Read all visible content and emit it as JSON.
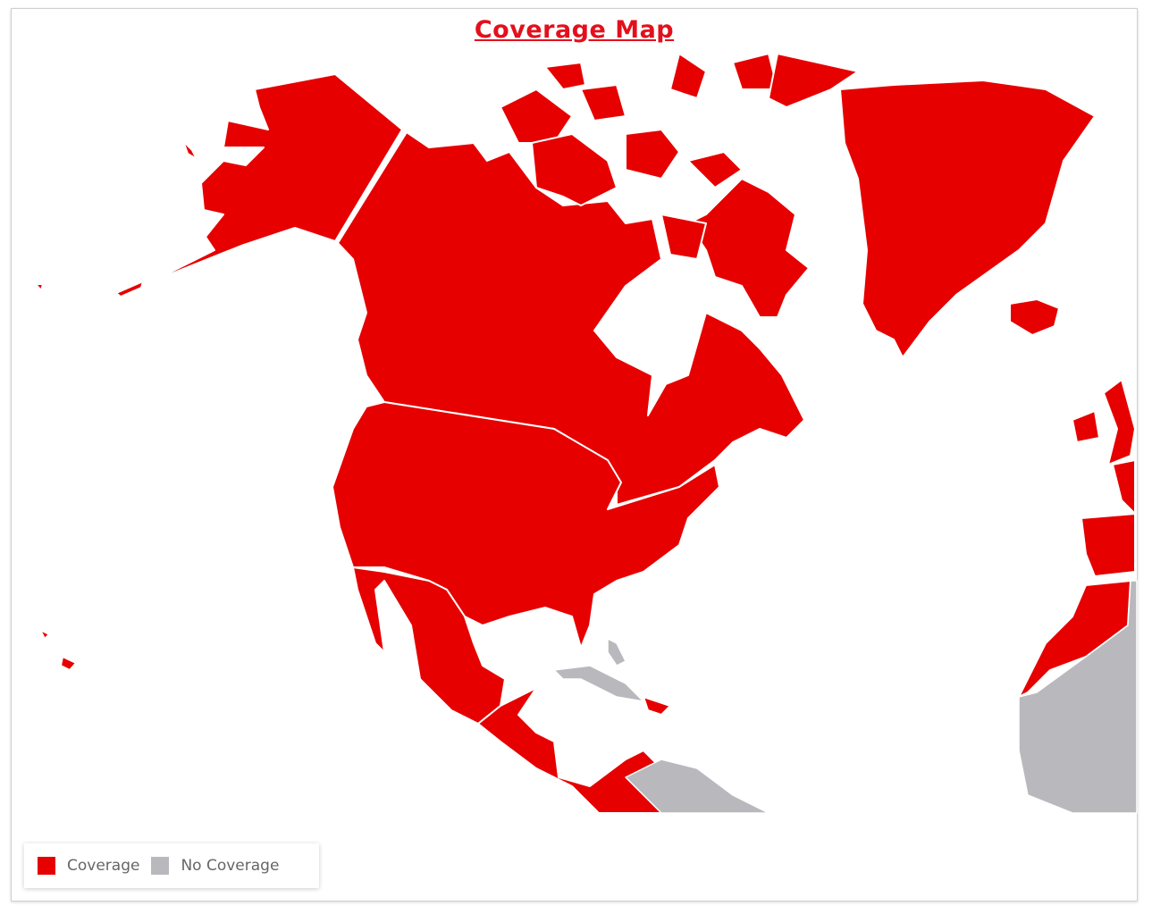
{
  "title": "Coverage Map",
  "legend": [
    {
      "label": "Coverage",
      "color": "#e60000"
    },
    {
      "label": "No Coverage",
      "color": "#b8b8bd"
    }
  ],
  "regions": {
    "coverage": [
      "Alaska",
      "Canada",
      "United States",
      "Mexico",
      "Central America",
      "Greenland",
      "Iceland",
      "United Kingdom",
      "Ireland",
      "France",
      "Spain",
      "Portugal",
      "Morocco",
      "Hawaii",
      "Hispaniola",
      "Colombia"
    ],
    "no_coverage": [
      "Cuba",
      "Bahamas",
      "Venezuela",
      "West Africa"
    ]
  }
}
